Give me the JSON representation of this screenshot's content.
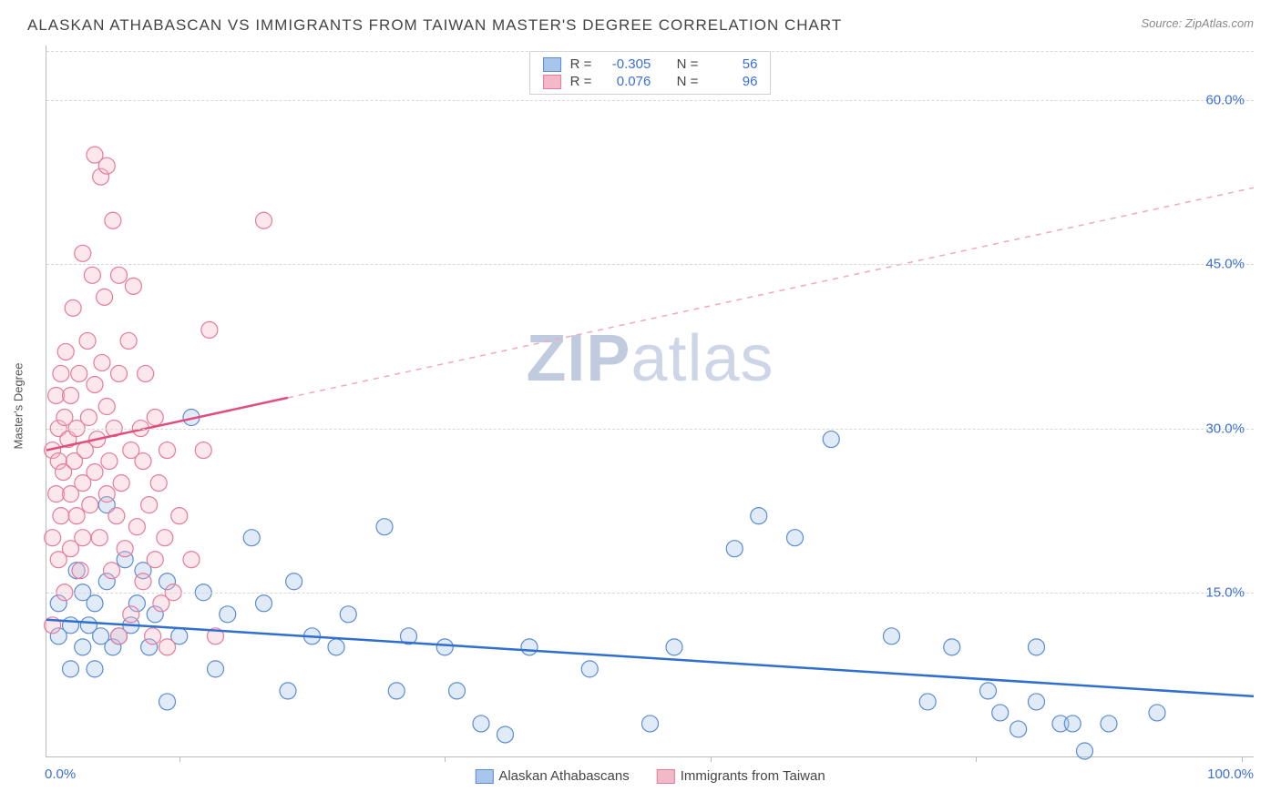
{
  "title": "ALASKAN ATHABASCAN VS IMMIGRANTS FROM TAIWAN MASTER'S DEGREE CORRELATION CHART",
  "source": "Source: ZipAtlas.com",
  "watermark_bold": "ZIP",
  "watermark_light": "atlas",
  "ylabel": "Master's Degree",
  "chart": {
    "type": "scatter",
    "background_color": "#ffffff",
    "grid_color": "#d8d8d8",
    "axis_color": "#bbbbbb",
    "tick_label_color": "#3b6fd6",
    "x_range": [
      0,
      100
    ],
    "y_range": [
      0,
      65
    ],
    "x_labels": [
      "0.0%",
      "100.0%"
    ],
    "y_ticks": [
      15.0,
      30.0,
      45.0,
      60.0
    ],
    "y_tick_labels": [
      "15.0%",
      "30.0%",
      "45.0%",
      "60.0%"
    ],
    "x_bottom_ticks": [
      11,
      33,
      55,
      77,
      99
    ],
    "marker_radius": 9,
    "marker_opacity": 0.35,
    "series": [
      {
        "name": "Alaskan Athabascans",
        "fill": "#a8c6ec",
        "stroke": "#5b8cd4",
        "trend_solid": "#2f6fd0",
        "trend_dash": "#8fb0e0",
        "trend": {
          "x1": 0,
          "y1": 12.5,
          "x2": 100,
          "y2": 5.5,
          "solid_until_x": 100
        },
        "stats": {
          "R": "-0.305",
          "N": "56"
        },
        "points": [
          [
            1,
            14
          ],
          [
            1,
            11
          ],
          [
            2,
            8
          ],
          [
            2,
            12
          ],
          [
            2.5,
            17
          ],
          [
            3,
            10
          ],
          [
            3,
            15
          ],
          [
            3.5,
            12
          ],
          [
            4,
            8
          ],
          [
            4,
            14
          ],
          [
            4.5,
            11
          ],
          [
            5,
            23
          ],
          [
            5,
            16
          ],
          [
            5.5,
            10
          ],
          [
            6,
            11
          ],
          [
            6.5,
            18
          ],
          [
            7,
            12
          ],
          [
            7.5,
            14
          ],
          [
            8,
            17
          ],
          [
            8.5,
            10
          ],
          [
            9,
            13
          ],
          [
            10,
            5
          ],
          [
            10,
            16
          ],
          [
            11,
            11
          ],
          [
            12,
            31
          ],
          [
            13,
            15
          ],
          [
            14,
            8
          ],
          [
            15,
            13
          ],
          [
            17,
            20
          ],
          [
            18,
            14
          ],
          [
            20,
            6
          ],
          [
            20.5,
            16
          ],
          [
            22,
            11
          ],
          [
            24,
            10
          ],
          [
            25,
            13
          ],
          [
            28,
            21
          ],
          [
            29,
            6
          ],
          [
            30,
            11
          ],
          [
            33,
            10
          ],
          [
            34,
            6
          ],
          [
            36,
            3
          ],
          [
            38,
            2
          ],
          [
            40,
            10
          ],
          [
            45,
            8
          ],
          [
            50,
            3
          ],
          [
            52,
            10
          ],
          [
            57,
            19
          ],
          [
            59,
            22
          ],
          [
            62,
            20
          ],
          [
            65,
            29
          ],
          [
            70,
            11
          ],
          [
            73,
            5
          ],
          [
            75,
            10
          ],
          [
            78,
            6
          ],
          [
            79,
            4
          ],
          [
            80.5,
            2.5
          ],
          [
            82,
            5
          ],
          [
            82,
            10
          ],
          [
            84,
            3
          ],
          [
            85,
            3
          ],
          [
            86,
            0.5
          ],
          [
            88,
            3
          ],
          [
            92,
            4
          ]
        ]
      },
      {
        "name": "Immigrants from Taiwan",
        "fill": "#f4b9c9",
        "stroke": "#e77a9b",
        "trend_solid": "#e14d7c",
        "trend_dash": "#f0a8bd",
        "trend": {
          "x1": 0,
          "y1": 28.0,
          "x2": 100,
          "y2": 52.0,
          "solid_until_x": 20
        },
        "stats": {
          "R": "0.076",
          "N": "96"
        },
        "points": [
          [
            0.5,
            12
          ],
          [
            0.5,
            20
          ],
          [
            0.5,
            28
          ],
          [
            0.8,
            24
          ],
          [
            0.8,
            33
          ],
          [
            1,
            18
          ],
          [
            1,
            27
          ],
          [
            1,
            30
          ],
          [
            1.2,
            35
          ],
          [
            1.2,
            22
          ],
          [
            1.4,
            26
          ],
          [
            1.5,
            15
          ],
          [
            1.5,
            31
          ],
          [
            1.6,
            37
          ],
          [
            1.8,
            29
          ],
          [
            2,
            19
          ],
          [
            2,
            24
          ],
          [
            2,
            33
          ],
          [
            2.2,
            41
          ],
          [
            2.3,
            27
          ],
          [
            2.5,
            22
          ],
          [
            2.5,
            30
          ],
          [
            2.7,
            35
          ],
          [
            2.8,
            17
          ],
          [
            3,
            25
          ],
          [
            3,
            46
          ],
          [
            3,
            20
          ],
          [
            3.2,
            28
          ],
          [
            3.4,
            38
          ],
          [
            3.5,
            31
          ],
          [
            3.6,
            23
          ],
          [
            3.8,
            44
          ],
          [
            4,
            26
          ],
          [
            4,
            34
          ],
          [
            4,
            55
          ],
          [
            4.2,
            29
          ],
          [
            4.4,
            20
          ],
          [
            4.5,
            53
          ],
          [
            4.6,
            36
          ],
          [
            4.8,
            42
          ],
          [
            5,
            24
          ],
          [
            5,
            32
          ],
          [
            5,
            54
          ],
          [
            5.2,
            27
          ],
          [
            5.4,
            17
          ],
          [
            5.5,
            49
          ],
          [
            5.6,
            30
          ],
          [
            5.8,
            22
          ],
          [
            6,
            11
          ],
          [
            6,
            35
          ],
          [
            6,
            44
          ],
          [
            6.2,
            25
          ],
          [
            6.5,
            19
          ],
          [
            6.8,
            38
          ],
          [
            7,
            28
          ],
          [
            7,
            13
          ],
          [
            7.2,
            43
          ],
          [
            7.5,
            21
          ],
          [
            7.8,
            30
          ],
          [
            8,
            16
          ],
          [
            8,
            27
          ],
          [
            8.2,
            35
          ],
          [
            8.5,
            23
          ],
          [
            8.8,
            11
          ],
          [
            9,
            31
          ],
          [
            9,
            18
          ],
          [
            9.3,
            25
          ],
          [
            9.5,
            14
          ],
          [
            9.8,
            20
          ],
          [
            10,
            10
          ],
          [
            10,
            28
          ],
          [
            10.5,
            15
          ],
          [
            11,
            22
          ],
          [
            12,
            18
          ],
          [
            13,
            28
          ],
          [
            13.5,
            39
          ],
          [
            14,
            11
          ],
          [
            18,
            49
          ]
        ]
      }
    ]
  },
  "legend_top_labels": {
    "R": "R =",
    "N": "N ="
  }
}
